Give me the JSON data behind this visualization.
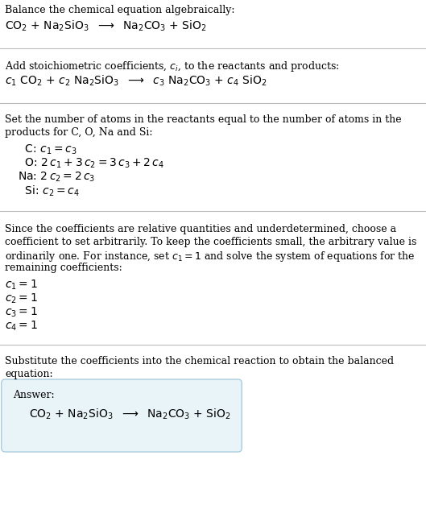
{
  "bg_color": "#ffffff",
  "text_color": "#000000",
  "answer_box_color": "#e8f4f8",
  "answer_box_border": "#aaccdd",
  "section1_title": "Balance the chemical equation algebraically:",
  "section1_eq": "CO$_2$ + Na$_2$SiO$_3$  $\\longrightarrow$  Na$_2$CO$_3$ + SiO$_2$",
  "section2_title": "Add stoichiometric coefficients, $c_i$, to the reactants and products:",
  "section2_eq": "$c_1$ CO$_2$ + $c_2$ Na$_2$SiO$_3$  $\\longrightarrow$  $c_3$ Na$_2$CO$_3$ + $c_4$ SiO$_2$",
  "section3_title_line1": "Set the number of atoms in the reactants equal to the number of atoms in the",
  "section3_title_line2": "products for C, O, Na and Si:",
  "section3_lines": [
    [
      "  C: ",
      "$c_1 = c_3$"
    ],
    [
      "  O: ",
      "$2\\,c_1 + 3\\,c_2 = 3\\,c_3 + 2\\,c_4$"
    ],
    [
      "Na: ",
      "$2\\,c_2 = 2\\,c_3$"
    ],
    [
      "  Si: ",
      "$c_2 = c_4$"
    ]
  ],
  "section4_title_lines": [
    "Since the coefficients are relative quantities and underdetermined, choose a",
    "coefficient to set arbitrarily. To keep the coefficients small, the arbitrary value is",
    "ordinarily one. For instance, set $c_1 = 1$ and solve the system of equations for the",
    "remaining coefficients:"
  ],
  "section4_lines": [
    "$c_1 = 1$",
    "$c_2 = 1$",
    "$c_3 = 1$",
    "$c_4 = 1$"
  ],
  "section5_title_line1": "Substitute the coefficients into the chemical reaction to obtain the balanced",
  "section5_title_line2": "equation:",
  "answer_label": "Answer:",
  "answer_eq": "CO$_2$ + Na$_2$SiO$_3$  $\\longrightarrow$  Na$_2$CO$_3$ + SiO$_2$",
  "figsize": [
    5.29,
    6.27
  ],
  "dpi": 100
}
